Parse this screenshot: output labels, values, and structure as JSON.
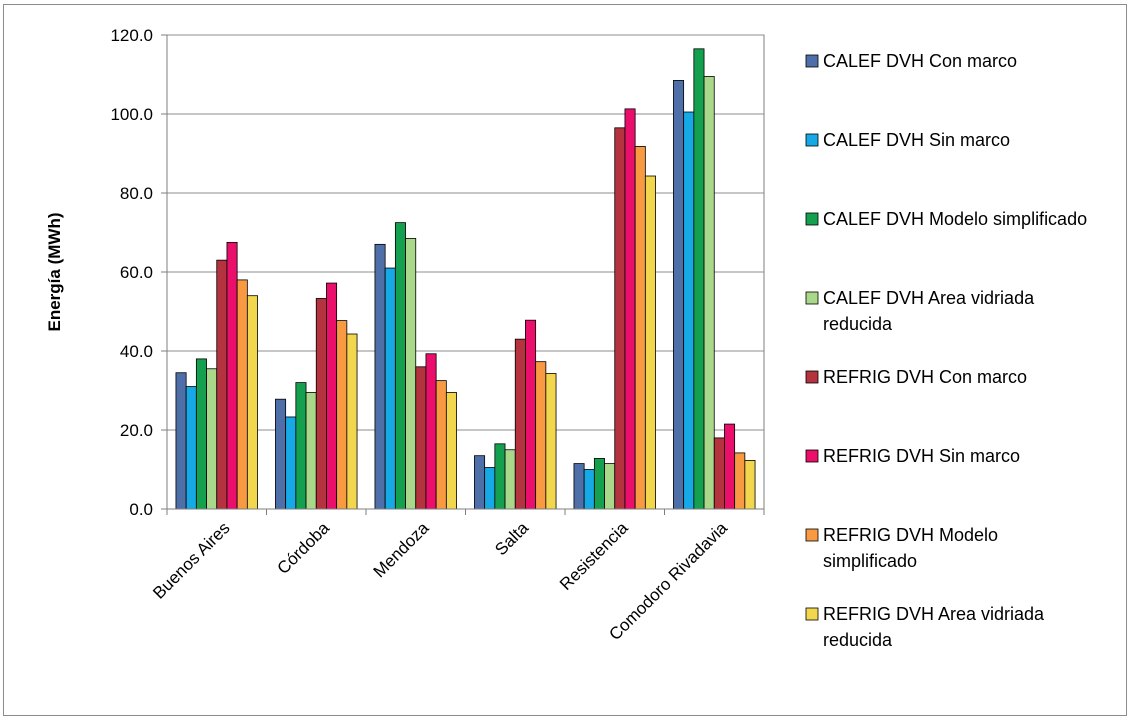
{
  "chart_data": {
    "type": "bar",
    "title": "",
    "xlabel": "",
    "ylabel": "Energía (MWh)",
    "ylim": [
      0,
      120
    ],
    "yticks": [
      "0.0",
      "20.0",
      "40.0",
      "60.0",
      "80.0",
      "100.0",
      "120.0"
    ],
    "grid": true,
    "legend_position": "right",
    "categories": [
      "Buenos Aires",
      "Córdoba",
      "Mendoza",
      "Salta",
      "Resistencia",
      "Comodoro Rivadavia"
    ],
    "series": [
      {
        "name": "CALEF DVH Con marco",
        "color": "#4F6FA8",
        "values": [
          34.5,
          27.8,
          67.0,
          13.5,
          11.5,
          108.5
        ]
      },
      {
        "name": "CALEF DVH Sin marco",
        "color": "#16A9E6",
        "values": [
          31.0,
          23.3,
          61.0,
          10.5,
          10.0,
          100.5
        ]
      },
      {
        "name": "CALEF DVH Modelo simplificado",
        "color": "#14A04E",
        "values": [
          38.0,
          32.0,
          72.5,
          16.5,
          12.8,
          116.5
        ]
      },
      {
        "name": "CALEF DVH Area vidriada reducida",
        "color": "#A9D88A",
        "values": [
          35.5,
          29.5,
          68.5,
          15.0,
          11.5,
          109.5
        ]
      },
      {
        "name": "REFRIG DVH Con marco",
        "color": "#B5333F",
        "values": [
          63.0,
          53.3,
          36.0,
          43.0,
          96.5,
          18.0
        ]
      },
      {
        "name": "REFRIG DVH Sin marco",
        "color": "#EA0F6B",
        "values": [
          67.5,
          57.2,
          39.3,
          47.8,
          101.3,
          21.5
        ]
      },
      {
        "name": "REFRIG DVH Modelo simplificado",
        "color": "#F79A42",
        "values": [
          58.0,
          47.7,
          32.5,
          37.3,
          91.8,
          14.2
        ]
      },
      {
        "name": "REFRIG DVH Area vidriada reducida",
        "color": "#F2D74E",
        "values": [
          54.0,
          44.3,
          29.5,
          34.3,
          84.3,
          12.3
        ]
      }
    ]
  }
}
